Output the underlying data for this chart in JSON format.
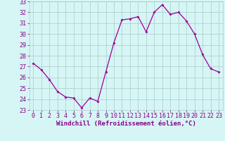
{
  "x": [
    0,
    1,
    2,
    3,
    4,
    5,
    6,
    7,
    8,
    9,
    10,
    11,
    12,
    13,
    14,
    15,
    16,
    17,
    18,
    19,
    20,
    21,
    22,
    23
  ],
  "y": [
    27.3,
    26.7,
    25.8,
    24.7,
    24.2,
    24.1,
    23.2,
    24.1,
    23.8,
    26.5,
    29.2,
    31.3,
    31.4,
    31.6,
    30.2,
    32.0,
    32.7,
    31.8,
    32.0,
    31.2,
    30.0,
    28.1,
    26.8,
    26.5
  ],
  "xlabel": "Windchill (Refroidissement éolien,°C)",
  "ylim": [
    23,
    33
  ],
  "xlim_min": -0.5,
  "xlim_max": 23.5,
  "yticks": [
    23,
    24,
    25,
    26,
    27,
    28,
    29,
    30,
    31,
    32,
    33
  ],
  "xticks": [
    0,
    1,
    2,
    3,
    4,
    5,
    6,
    7,
    8,
    9,
    10,
    11,
    12,
    13,
    14,
    15,
    16,
    17,
    18,
    19,
    20,
    21,
    22,
    23
  ],
  "line_color": "#990099",
  "marker": "D",
  "marker_size": 2.0,
  "bg_color": "#d6f5f5",
  "grid_color": "#aacaca",
  "tick_label_color": "#880088",
  "xlabel_color": "#880088",
  "xlabel_fontsize": 6.5,
  "tick_fontsize": 6.0,
  "linewidth": 0.9
}
